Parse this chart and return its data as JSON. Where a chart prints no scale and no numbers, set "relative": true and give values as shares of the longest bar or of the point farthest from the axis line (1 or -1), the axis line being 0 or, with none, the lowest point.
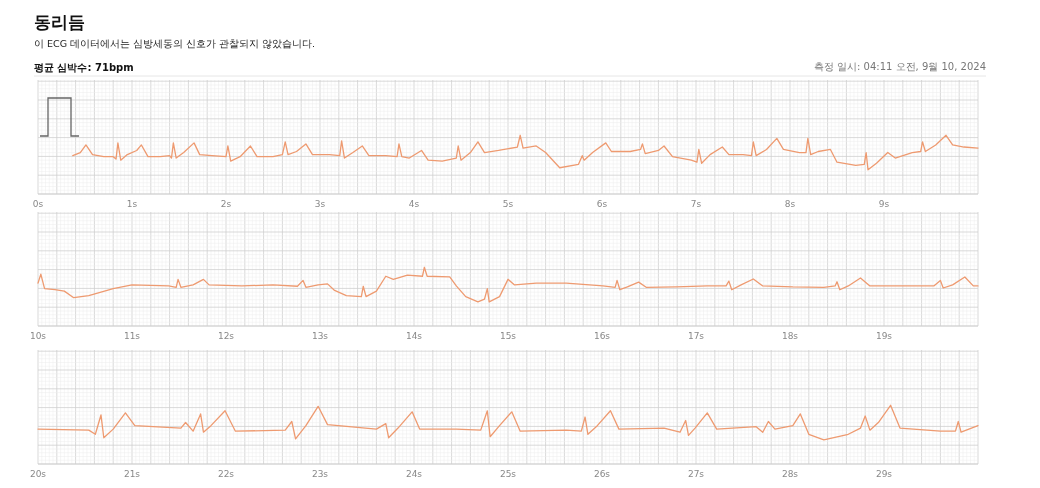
{
  "chart_data": [
    {
      "type": "line",
      "title": "동리듬",
      "subtitle": "이 ECG 데이터에서는 심방세동의 신호가 관찰되지 않았습니다.",
      "annotations": [
        "평균 심박수: 71bpm",
        "측정 일시: 04:11 오전, 9월 10, 2024"
      ],
      "relative": true,
      "grid": true,
      "xlim": [
        0,
        10
      ],
      "xticks": [
        {
          "value": 0,
          "label": "0s"
        },
        {
          "value": 1,
          "label": "1s"
        },
        {
          "value": 2,
          "label": "2s"
        },
        {
          "value": 3,
          "label": "3s"
        },
        {
          "value": 4,
          "label": "4s"
        },
        {
          "value": 5,
          "label": "5s"
        },
        {
          "value": 6,
          "label": "6s"
        },
        {
          "value": 7,
          "label": "7s"
        },
        {
          "value": 8,
          "label": "8s"
        },
        {
          "value": 9,
          "label": "9s"
        }
      ],
      "series": [
        {
          "color": "#ee9a70",
          "x": [
            0.37,
            0.45,
            0.51,
            0.58,
            0.7,
            0.8,
            0.83,
            0.85,
            0.88,
            0.95,
            1.05,
            1.1,
            1.17,
            1.3,
            1.4,
            1.42,
            1.44,
            1.47,
            1.55,
            1.66,
            1.72,
            1.85,
            2.0,
            2.02,
            2.05,
            2.15,
            2.26,
            2.33,
            2.5,
            2.6,
            2.63,
            2.66,
            2.75,
            2.85,
            2.92,
            3.1,
            3.21,
            3.23,
            3.26,
            3.35,
            3.45,
            3.52,
            3.7,
            3.82,
            3.84,
            3.87,
            3.95,
            4.08,
            4.15,
            4.3,
            4.45,
            4.47,
            4.5,
            4.6,
            4.68,
            4.75,
            4.9,
            5.1,
            5.13,
            5.16,
            5.3,
            5.4,
            5.55,
            5.75,
            5.79,
            5.81,
            5.9,
            6.04,
            6.1,
            6.3,
            6.41,
            6.43,
            6.46,
            6.6,
            6.66,
            6.75,
            6.95,
            7.01,
            7.03,
            7.06,
            7.15,
            7.28,
            7.35,
            7.5,
            7.59,
            7.61,
            7.64,
            7.75,
            7.86,
            7.93,
            8.1,
            8.17,
            8.19,
            8.22,
            8.3,
            8.43,
            8.5,
            8.7,
            8.79,
            8.81,
            8.83,
            8.92,
            9.04,
            9.12,
            9.3,
            9.39,
            9.41,
            9.44,
            9.55,
            9.66,
            9.73,
            9.85,
            10
          ],
          "values": [
            0.41,
            0.5,
            0.72,
            0.44,
            0.38,
            0.38,
            0.31,
            0.78,
            0.28,
            0.44,
            0.56,
            0.72,
            0.38,
            0.38,
            0.41,
            0.34,
            0.78,
            0.34,
            0.5,
            0.78,
            0.44,
            0.41,
            0.38,
            0.69,
            0.25,
            0.38,
            0.69,
            0.38,
            0.38,
            0.44,
            0.81,
            0.44,
            0.53,
            0.75,
            0.44,
            0.44,
            0.41,
            0.84,
            0.34,
            0.5,
            0.69,
            0.41,
            0.41,
            0.38,
            0.75,
            0.38,
            0.34,
            0.56,
            0.28,
            0.25,
            0.34,
            0.69,
            0.28,
            0.5,
            0.81,
            0.5,
            0.56,
            0.66,
            1,
            0.63,
            0.69,
            0.5,
            0.06,
            0.16,
            0.41,
            0.28,
            0.5,
            0.78,
            0.53,
            0.53,
            0.59,
            0.75,
            0.47,
            0.56,
            0.69,
            0.38,
            0.28,
            0.22,
            0.59,
            0.19,
            0.44,
            0.66,
            0.44,
            0.44,
            0.41,
            0.81,
            0.41,
            0.59,
            0.91,
            0.59,
            0.5,
            0.5,
            0.91,
            0.44,
            0.53,
            0.59,
            0.22,
            0.13,
            0.16,
            0.5,
            0,
            0.19,
            0.5,
            0.34,
            0.5,
            0.53,
            0.81,
            0.53,
            0.72,
            1,
            0.72,
            0.66,
            0.63
          ]
        }
      ]
    },
    {
      "type": "line",
      "relative": true,
      "grid": true,
      "xlim": [
        10,
        20
      ],
      "xticks": [
        {
          "value": 10,
          "label": "10s"
        },
        {
          "value": 11,
          "label": "11s"
        },
        {
          "value": 12,
          "label": "12s"
        },
        {
          "value": 13,
          "label": "13s"
        },
        {
          "value": 14,
          "label": "14s"
        },
        {
          "value": 15,
          "label": "15s"
        },
        {
          "value": 16,
          "label": "16s"
        },
        {
          "value": 17,
          "label": "17s"
        },
        {
          "value": 18,
          "label": "18s"
        },
        {
          "value": 19,
          "label": "19s"
        }
      ],
      "series": [
        {
          "color": "#ee9a70",
          "x": [
            10.0,
            10.03,
            10.07,
            10.18,
            10.28,
            10.38,
            10.54,
            10.8,
            11.0,
            11.39,
            11.47,
            11.49,
            11.52,
            11.65,
            11.76,
            11.82,
            12.17,
            12.5,
            12.76,
            12.82,
            12.85,
            12.98,
            13.08,
            13.15,
            13.28,
            13.44,
            13.46,
            13.49,
            13.6,
            13.7,
            13.78,
            13.93,
            14.09,
            14.11,
            14.14,
            14.38,
            14.45,
            14.55,
            14.68,
            14.75,
            14.78,
            14.8,
            14.91,
            15.0,
            15.07,
            15.3,
            15.62,
            16.01,
            16.14,
            16.16,
            16.19,
            16.27,
            16.39,
            16.47,
            16.79,
            17.12,
            17.32,
            17.35,
            17.38,
            17.48,
            17.61,
            17.71,
            18.03,
            18.36,
            18.48,
            18.5,
            18.53,
            18.62,
            18.75,
            18.85,
            19.27,
            19.53,
            19.6,
            19.63,
            19.73,
            19.86,
            19.95,
            20
          ],
          "values": [
            0.54,
            0.8,
            0.38,
            0.35,
            0.31,
            0.12,
            0.18,
            0.38,
            0.49,
            0.46,
            0.42,
            0.65,
            0.42,
            0.49,
            0.65,
            0.49,
            0.46,
            0.49,
            0.45,
            0.62,
            0.42,
            0.49,
            0.52,
            0.34,
            0.18,
            0.15,
            0.45,
            0.15,
            0.31,
            0.74,
            0.65,
            0.77,
            0.74,
            1,
            0.74,
            0.72,
            0.46,
            0.15,
            0,
            0.08,
            0.38,
            0,
            0.15,
            0.65,
            0.49,
            0.54,
            0.54,
            0.46,
            0.42,
            0.62,
            0.35,
            0.43,
            0.57,
            0.42,
            0.43,
            0.46,
            0.46,
            0.6,
            0.35,
            0.49,
            0.66,
            0.46,
            0.43,
            0.42,
            0.46,
            0.58,
            0.35,
            0.46,
            0.69,
            0.46,
            0.46,
            0.46,
            0.62,
            0.4,
            0.49,
            0.72,
            0.46,
            0.46
          ]
        }
      ]
    },
    {
      "type": "line",
      "relative": true,
      "grid": true,
      "xlim": [
        20,
        30
      ],
      "xticks": [
        {
          "value": 20,
          "label": "20s"
        },
        {
          "value": 21,
          "label": "21s"
        },
        {
          "value": 22,
          "label": "22s"
        },
        {
          "value": 23,
          "label": "23s"
        },
        {
          "value": 24,
          "label": "24s"
        },
        {
          "value": 25,
          "label": "25s"
        },
        {
          "value": 26,
          "label": "26s"
        },
        {
          "value": 27,
          "label": "27s"
        },
        {
          "value": 28,
          "label": "28s"
        },
        {
          "value": 29,
          "label": "29s"
        }
      ],
      "series": [
        {
          "color": "#ee9a70",
          "x": [
            20.0,
            20.54,
            20.61,
            20.67,
            20.7,
            20.8,
            20.93,
            21.03,
            21.52,
            21.57,
            21.65,
            21.73,
            21.76,
            21.84,
            21.99,
            22.1,
            22.63,
            22.7,
            22.74,
            22.85,
            22.98,
            23.08,
            23.6,
            23.7,
            23.73,
            23.83,
            23.98,
            24.06,
            24.45,
            24.71,
            24.78,
            24.81,
            24.91,
            25.04,
            25.13,
            25.62,
            25.78,
            25.82,
            25.85,
            25.95,
            26.09,
            26.18,
            26.66,
            26.83,
            26.89,
            26.92,
            26.99,
            27.12,
            27.22,
            27.64,
            27.71,
            27.77,
            27.84,
            28.03,
            28.11,
            28.2,
            28.36,
            28.62,
            28.75,
            28.8,
            28.85,
            28.94,
            29.07,
            29.17,
            29.6,
            29.76,
            29.79,
            29.82,
            30
          ],
          "values": [
            0.31,
            0.28,
            0.16,
            0.72,
            0.06,
            0.31,
            0.78,
            0.41,
            0.34,
            0.5,
            0.25,
            0.75,
            0.22,
            0.41,
            0.84,
            0.25,
            0.28,
            0.53,
            0.03,
            0.41,
            0.97,
            0.44,
            0.31,
            0.47,
            0.06,
            0.34,
            0.81,
            0.31,
            0.31,
            0.28,
            0.84,
            0.09,
            0.41,
            0.81,
            0.25,
            0.28,
            0.25,
            0.66,
            0.16,
            0.41,
            0.84,
            0.31,
            0.34,
            0.22,
            0.56,
            0.13,
            0.34,
            0.78,
            0.31,
            0.38,
            0.22,
            0.53,
            0.31,
            0.41,
            0.75,
            0.16,
            0,
            0.16,
            0.34,
            0.69,
            0.28,
            0.5,
            1,
            0.34,
            0.25,
            0.25,
            0.53,
            0.22,
            0.41
          ]
        }
      ]
    }
  ]
}
